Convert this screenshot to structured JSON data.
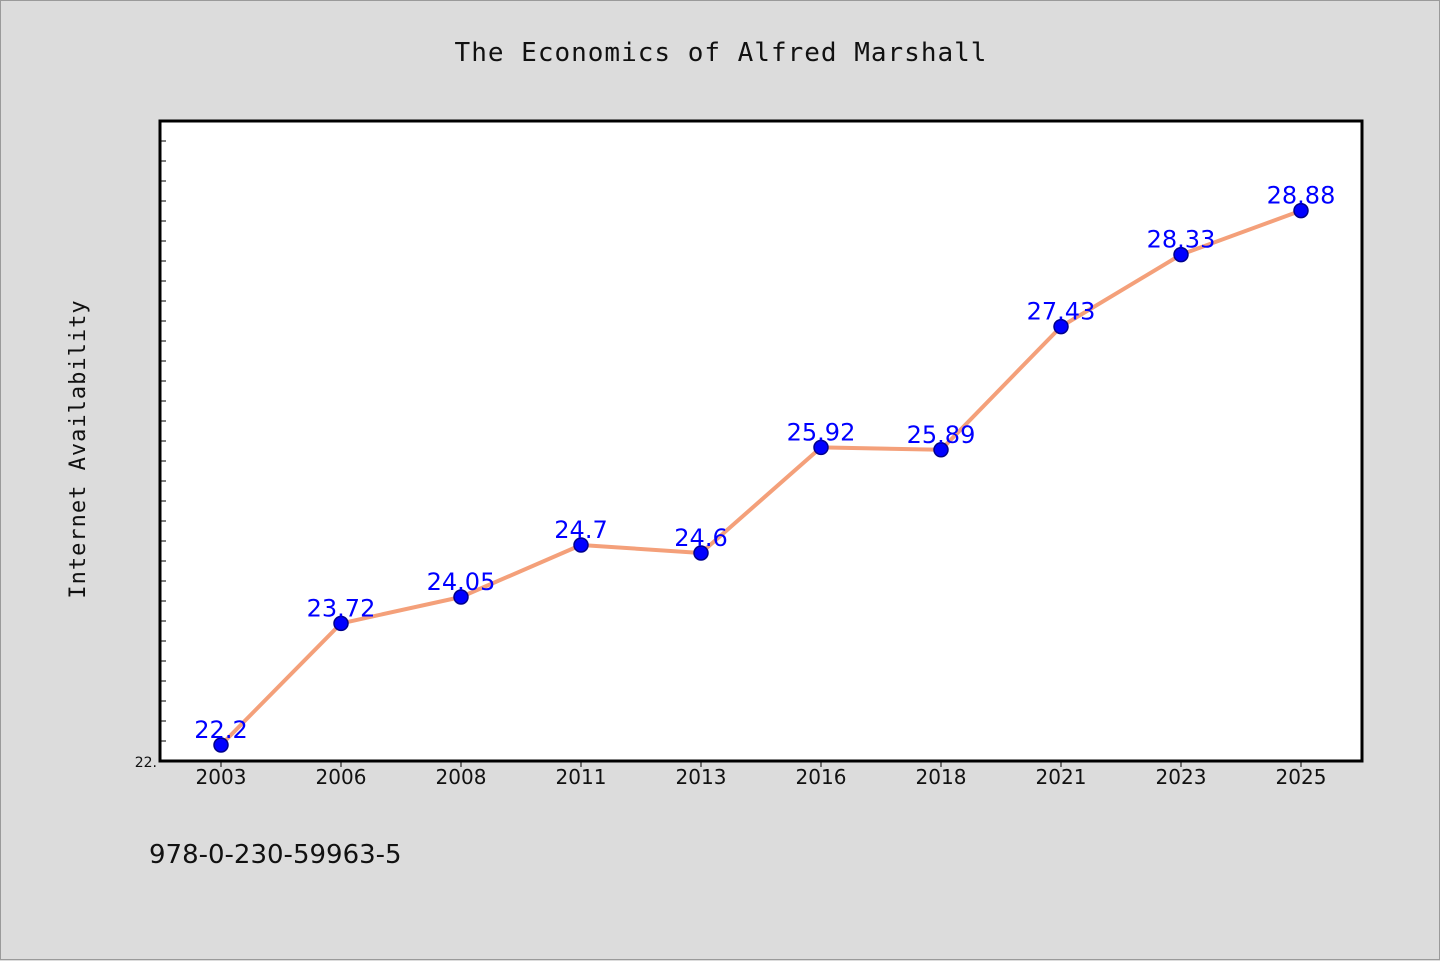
{
  "chart_data": {
    "type": "line",
    "title": "The Economics of Alfred Marshall",
    "xlabel": "",
    "ylabel": "Internet Availability",
    "categories": [
      "2003",
      "2006",
      "2008",
      "2011",
      "2013",
      "2016",
      "2018",
      "2021",
      "2023",
      "2025"
    ],
    "series": [
      {
        "values": [
          22.2,
          23.72,
          24.05,
          24.7,
          24.6,
          25.92,
          25.89,
          27.43,
          28.33,
          28.88
        ],
        "data_labels": [
          "22.2",
          "23.72",
          "24.05",
          "24.7",
          "24.6",
          "25.92",
          "25.89",
          "27.43",
          "28.33",
          "28.88"
        ]
      }
    ],
    "ylim": [
      22.0,
      30.0
    ],
    "y_tick_labels": [
      "22."
    ],
    "grid": false,
    "legend": "none",
    "colors": {
      "line": "#f4a07a",
      "marker": "#0000ff",
      "marker_edge": "#00008b",
      "data_label": "#0000ff",
      "plot_background": "#ffffff",
      "figure_background": "#dcdcdc"
    }
  },
  "footer": {
    "isbn": "978-0-230-59963-5"
  }
}
